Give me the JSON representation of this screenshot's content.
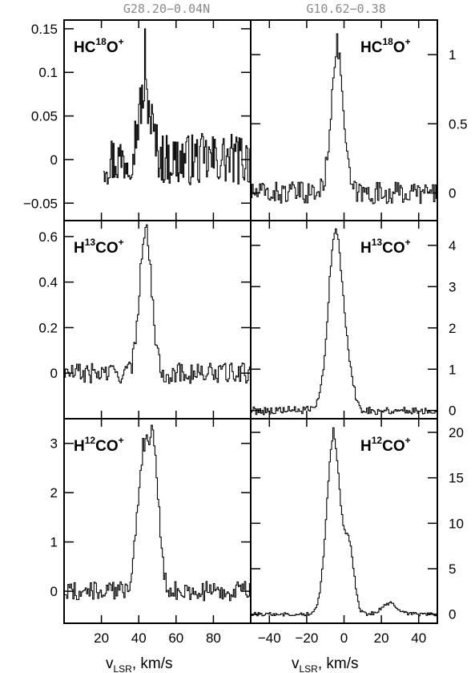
{
  "column_titles": [
    "G28.20−0.04N",
    "G10.62−0.38"
  ],
  "chart_data": [
    {
      "type": "line",
      "step": true,
      "source": "G28.20−0.04N",
      "molecule": {
        "pre": "HC",
        "sup1": "18",
        "mid": "O",
        "sup2": "+"
      },
      "xlim": [
        0,
        100
      ],
      "ylim": [
        -0.07,
        0.16
      ],
      "yticks": [
        -0.05,
        0,
        0.05,
        0.1,
        0.15
      ],
      "ytick_labels": [
        "−0.05",
        "0",
        "0.05",
        "0.1",
        "0.15"
      ],
      "ytick_side": "left",
      "x_range": [
        21,
        100
      ],
      "profile": {
        "baseline": 0.0,
        "noise": 0.03,
        "components": [
          {
            "center": 43,
            "amp": 0.075,
            "width": 3.5
          }
        ]
      },
      "features": [
        {
          "x": 43,
          "y": 0.15,
          "note": "peak"
        }
      ]
    },
    {
      "type": "line",
      "step": true,
      "source": "G10.62−0.38",
      "molecule": {
        "pre": "HC",
        "sup1": "18",
        "mid": "O",
        "sup2": "+"
      },
      "xlim": [
        -50,
        50
      ],
      "ylim": [
        -0.2,
        1.25
      ],
      "yticks": [
        0,
        0.5,
        1
      ],
      "ytick_labels": [
        "0",
        "0.5",
        "1"
      ],
      "ytick_side": "right",
      "x_range": [
        -50,
        50
      ],
      "profile": {
        "baseline": 0.0,
        "noise": 0.08,
        "components": [
          {
            "center": -4,
            "amp": 1.05,
            "width": 3.2
          }
        ]
      },
      "features": [
        {
          "x": -4,
          "y": 1.15,
          "note": "peak"
        }
      ]
    },
    {
      "type": "line",
      "step": true,
      "source": "G28.20−0.04N",
      "molecule": {
        "pre": "H",
        "sup1": "13",
        "mid": "CO",
        "sup2": "+"
      },
      "xlim": [
        0,
        100
      ],
      "ylim": [
        -0.2,
        0.67
      ],
      "yticks": [
        0,
        0.2,
        0.4,
        0.6
      ],
      "ytick_labels": [
        "0",
        "0.2",
        "0.4",
        "0.6"
      ],
      "ytick_side": "left",
      "x_range": [
        0,
        100
      ],
      "profile": {
        "baseline": 0.0,
        "noise": 0.045,
        "components": [
          {
            "center": 42.5,
            "amp": 0.55,
            "width": 2.8
          },
          {
            "center": 46,
            "amp": 0.2,
            "width": 2.5
          }
        ]
      },
      "features": [
        {
          "x": 43,
          "y": 0.64,
          "note": "peak"
        }
      ]
    },
    {
      "type": "line",
      "step": true,
      "source": "G10.62−0.38",
      "molecule": {
        "pre": "H",
        "sup1": "13",
        "mid": "CO",
        "sup2": "+"
      },
      "xlim": [
        -50,
        50
      ],
      "ylim": [
        -0.2,
        4.6
      ],
      "yticks": [
        0,
        1,
        2,
        3,
        4
      ],
      "ytick_labels": [
        "0",
        "1",
        "2",
        "3",
        "4"
      ],
      "ytick_side": "right",
      "x_range": [
        -50,
        50
      ],
      "profile": {
        "baseline": 0.0,
        "noise": 0.1,
        "components": [
          {
            "center": -5,
            "amp": 4.3,
            "width": 3.8
          },
          {
            "center": 2,
            "amp": 0.7,
            "width": 3
          }
        ]
      },
      "features": [
        {
          "x": -5,
          "y": 4.4,
          "note": "peak"
        }
      ]
    },
    {
      "type": "line",
      "step": true,
      "source": "G28.20−0.04N",
      "molecule": {
        "pre": "H",
        "sup1": "12",
        "mid": "CO",
        "sup2": "+"
      },
      "xlim": [
        0,
        100
      ],
      "ylim": [
        -0.65,
        3.5
      ],
      "yticks": [
        0,
        1,
        2,
        3
      ],
      "ytick_labels": [
        "0",
        "1",
        "2",
        "3"
      ],
      "ytick_side": "left",
      "x_range": [
        0,
        100
      ],
      "xticks": [
        20,
        40,
        60,
        80
      ],
      "xtick_labels": [
        "20",
        "40",
        "60",
        "80"
      ],
      "profile": {
        "baseline": 0.0,
        "noise": 0.2,
        "components": [
          {
            "center": 42,
            "amp": 2.7,
            "width": 3.2
          },
          {
            "center": 48,
            "amp": 2.6,
            "width": 2.6
          }
        ]
      },
      "features": [
        {
          "x": 42,
          "y": 3.1,
          "note": "peak"
        },
        {
          "x": 48,
          "y": 2.95,
          "note": "peak"
        }
      ]
    },
    {
      "type": "line",
      "step": true,
      "source": "G10.62−0.38",
      "molecule": {
        "pre": "H",
        "sup1": "12",
        "mid": "CO",
        "sup2": "+"
      },
      "xlim": [
        -50,
        50
      ],
      "ylim": [
        -1,
        21.5
      ],
      "yticks": [
        0,
        5,
        10,
        15,
        20
      ],
      "ytick_labels": [
        "0",
        "5",
        "10",
        "15",
        "20"
      ],
      "ytick_side": "right",
      "x_range": [
        -50,
        50
      ],
      "xticks": [
        -40,
        -20,
        0,
        20,
        40
      ],
      "xtick_labels": [
        "−40",
        "−20",
        "0",
        "20",
        "40"
      ],
      "profile": {
        "baseline": 0.0,
        "noise": 0.2,
        "components": [
          {
            "center": -6,
            "amp": 19.5,
            "width": 3.6
          },
          {
            "center": 2.5,
            "amp": 7.0,
            "width": 2.6
          },
          {
            "center": 24,
            "amp": 1.2,
            "width": 4
          }
        ]
      },
      "features": [
        {
          "x": -6,
          "y": 20.5,
          "note": "peak"
        },
        {
          "x": 2.5,
          "y": 8.0,
          "note": "shoulder"
        }
      ]
    }
  ],
  "xlabel": {
    "main": "v",
    "sub": "LSR",
    "rest": ", km/s"
  }
}
